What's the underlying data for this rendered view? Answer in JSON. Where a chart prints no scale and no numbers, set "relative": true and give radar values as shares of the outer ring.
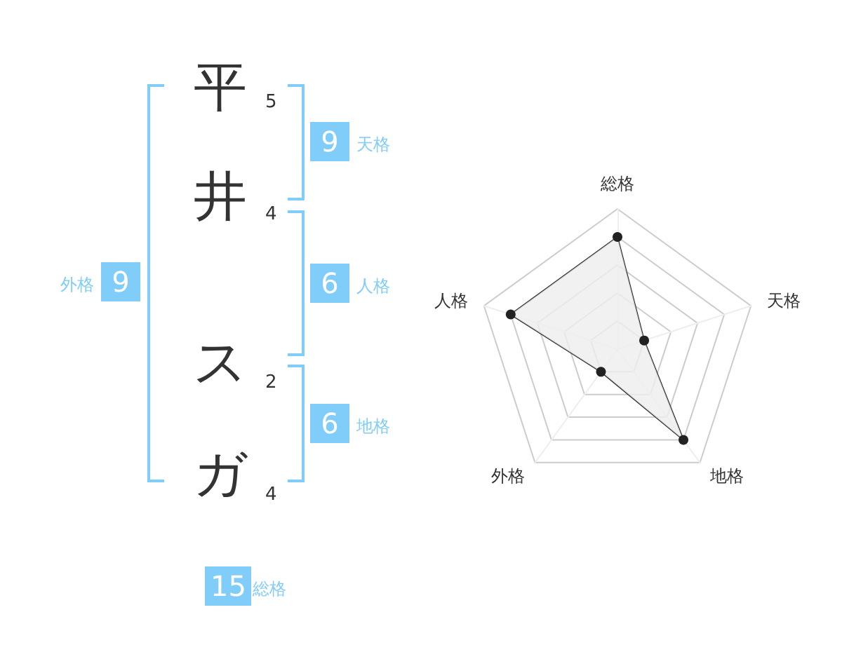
{
  "chart_data": [
    {
      "type": "other",
      "annotations": [
        "平",
        "5",
        "井",
        "4",
        "ス",
        "2",
        "ガ",
        "4",
        "9",
        "天格",
        "6",
        "人格",
        "6",
        "地格",
        "9",
        "外格",
        "15",
        "総格"
      ]
    },
    {
      "type": "radar",
      "relative": true,
      "categories": [
        "総格",
        "天格",
        "地格",
        "外格",
        "人格"
      ],
      "series": [
        {
          "color": "#222222",
          "values": [
            0.8,
            0.2,
            0.8,
            0.2,
            0.8
          ]
        }
      ],
      "marker": "circle"
    }
  ]
}
